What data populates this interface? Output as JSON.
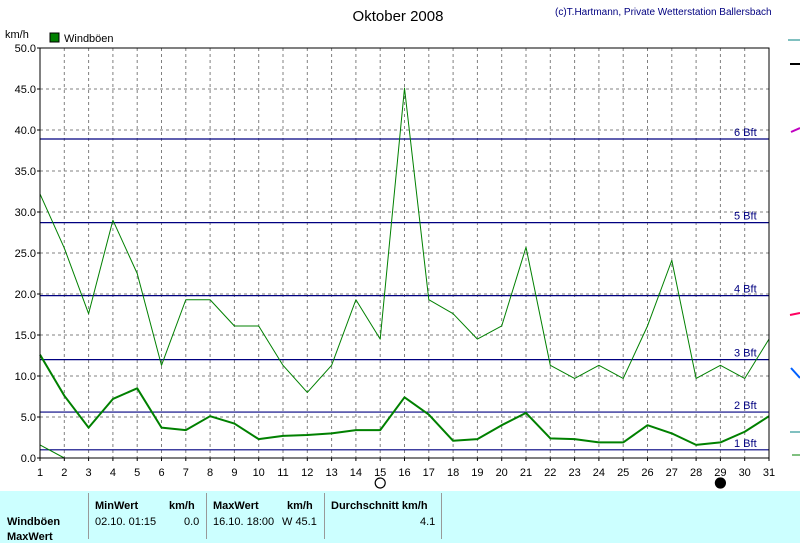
{
  "chart_data": {
    "type": "line",
    "title": "Oktober 2008",
    "credit": "(c)T.Hartmann, Private Wetterstation Ballersbach",
    "ylabel": "km/h",
    "ylim": [
      0,
      50
    ],
    "yticks": [
      "0.0",
      "5.0",
      "10.0",
      "15.0",
      "20.0",
      "25.0",
      "30.0",
      "35.0",
      "40.0",
      "45.0",
      "50.0"
    ],
    "x": [
      1,
      2,
      3,
      4,
      5,
      6,
      7,
      8,
      9,
      10,
      11,
      12,
      13,
      14,
      15,
      16,
      17,
      18,
      19,
      20,
      21,
      22,
      23,
      24,
      25,
      26,
      27,
      28,
      29,
      30,
      31
    ],
    "xlim": [
      1,
      31
    ],
    "grid": true,
    "legend": {
      "placement": "top-left",
      "entries": [
        "Windböen"
      ]
    },
    "series": [
      {
        "name": "Windböen",
        "color": "#008000",
        "values": [
          32.2,
          25.6,
          17.6,
          29.0,
          22.5,
          11.3,
          19.3,
          19.3,
          16.1,
          16.1,
          11.3,
          8.0,
          11.3,
          19.3,
          14.5,
          45.1,
          19.3,
          17.6,
          14.5,
          16.1,
          25.7,
          11.3,
          9.7,
          11.3,
          9.7,
          16.1,
          24.1,
          9.7,
          11.3,
          9.7,
          14.5
        ]
      },
      {
        "color": "#008000",
        "values": [
          12.6,
          7.6,
          3.7,
          7.2,
          8.5,
          3.7,
          3.4,
          5.1,
          4.2,
          2.3,
          2.7,
          2.8,
          3.0,
          3.4,
          3.4,
          7.4,
          5.3,
          2.1,
          2.3,
          4.0,
          5.5,
          2.4,
          2.3,
          1.9,
          1.9,
          4.0,
          3.0,
          1.6,
          1.9,
          3.2,
          5.1
        ]
      },
      {
        "color": "#008000",
        "x": [
          1,
          2,
          3
        ],
        "values": [
          1.6,
          0.0,
          0.0
        ]
      }
    ],
    "reference_lines": [
      {
        "label": "1 Bft",
        "value": 1.0
      },
      {
        "label": "2 Bft",
        "value": 5.6
      },
      {
        "label": "3 Bft",
        "value": 12.0
      },
      {
        "label": "4 Bft",
        "value": 19.8
      },
      {
        "label": "5 Bft",
        "value": 28.7
      },
      {
        "label": "6 Bft",
        "value": 38.9
      }
    ],
    "moon_markers": [
      {
        "x": 15,
        "phase": "full"
      },
      {
        "x": 29,
        "phase": "new"
      }
    ]
  },
  "footer": {
    "row_labels": [
      "Windböen",
      "MaxWert"
    ],
    "min_header": "MinWert",
    "min_unit": "km/h",
    "min_time": "02.10.  01:15",
    "min_value": "0.0",
    "max_header": "MaxWert",
    "max_unit": "km/h",
    "max_time": "16.10.  18:00",
    "max_value": "W 45.1",
    "avg_header": "Durchschnitt km/h",
    "avg_value": "4.1"
  },
  "colors": {
    "series": "#008000",
    "bft_line": "#000080",
    "grid": "#808080",
    "footer_bg": "#ccffff"
  }
}
